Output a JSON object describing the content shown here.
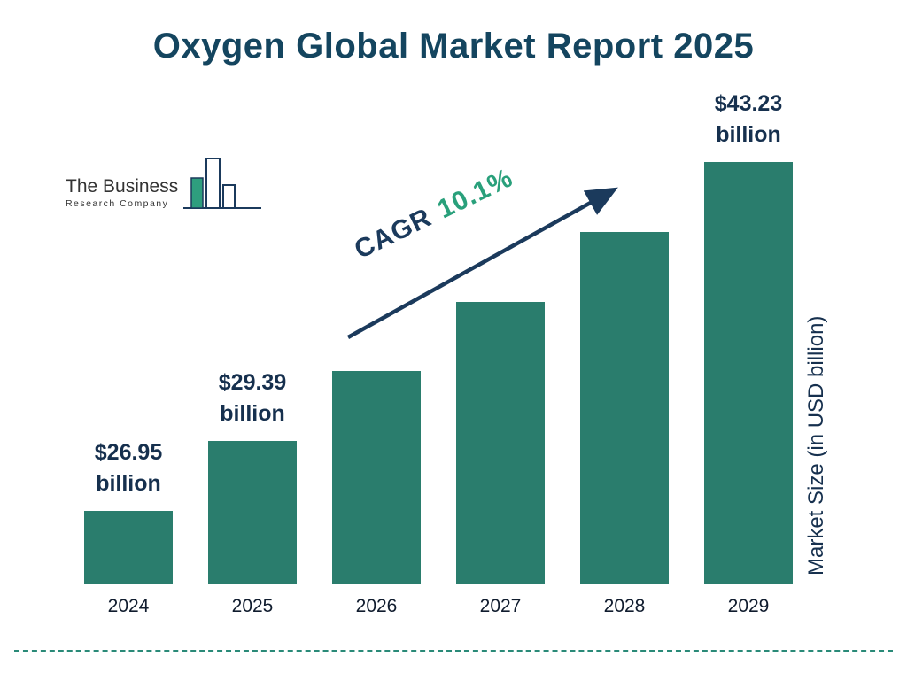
{
  "title": "Oxygen Global Market Report 2025",
  "logo": {
    "name_line": "The Business",
    "subtitle_line": "Research Company"
  },
  "cagr": {
    "label": "CAGR",
    "value": "10.1%"
  },
  "y_axis_label": "Market Size (in USD billion)",
  "chart_data": {
    "type": "bar",
    "title": "Oxygen Global Market Report 2025",
    "categories": [
      "2024",
      "2025",
      "2026",
      "2027",
      "2028",
      "2029"
    ],
    "values": [
      26.95,
      29.39,
      32.4,
      35.6,
      39.2,
      43.23
    ],
    "value_labels": [
      {
        "amount": "$26.95",
        "unit": "billion"
      },
      {
        "amount": "$29.39",
        "unit": "billion"
      },
      null,
      null,
      null,
      {
        "amount": "$43.23",
        "unit": "billion"
      }
    ],
    "xlabel": "",
    "ylabel": "Market Size (in USD billion)",
    "ylim": [
      0,
      45
    ],
    "grid": false,
    "legend": false,
    "bar_color": "#2a7d6d",
    "annotation": "CAGR 10.1%"
  },
  "colors": {
    "bar": "#2a7d6d",
    "title": "#14455f",
    "navy_text": "#16304e",
    "cagr_green": "#29a07b",
    "arrow_navy": "#1b3a5c",
    "divider_teal": "#2a8a78",
    "logo_green": "#2e9e7e"
  }
}
